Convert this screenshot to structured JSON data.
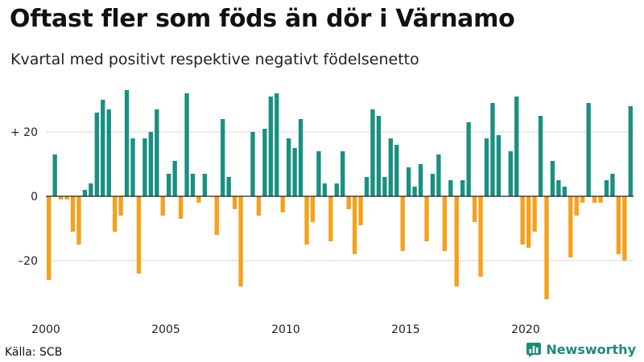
{
  "header": {
    "title": "Oftast fler som föds än dör i Värnamo",
    "subtitle": "Kvartal med positivt respektive negativt födelsenetto"
  },
  "footer": {
    "source": "Källa: SCB",
    "brand": "Newsworthy",
    "brand_icon": "newsworthy-logo-icon"
  },
  "colors": {
    "positive": "#1a9080",
    "negative": "#f5a11a",
    "grid": "#d9d9d9",
    "zero_line": "#222222"
  },
  "chart_data": {
    "type": "bar",
    "start_year": 2000,
    "periods_per_year": 4,
    "values": [
      -26,
      13,
      -1,
      -1,
      -11,
      -15,
      2,
      4,
      26,
      30,
      27,
      -11,
      -6,
      33,
      18,
      -24,
      18,
      20,
      27,
      -6,
      7,
      11,
      -7,
      32,
      7,
      -2,
      7,
      0,
      -12,
      24,
      6,
      -4,
      -28,
      0,
      20,
      -6,
      21,
      31,
      32,
      -5,
      18,
      15,
      24,
      -15,
      -8,
      14,
      4,
      -14,
      4,
      14,
      -4,
      -18,
      -9,
      6,
      27,
      25,
      6,
      18,
      16,
      -17,
      9,
      3,
      10,
      -14,
      7,
      13,
      -17,
      5,
      -28,
      5,
      23,
      -8,
      -25,
      18,
      29,
      19,
      0,
      14,
      31,
      -15,
      -16,
      -11,
      25,
      -32,
      11,
      5,
      3,
      -19,
      -6,
      -2,
      29,
      -2,
      -2,
      5,
      7,
      -18,
      -20,
      28
    ],
    "ylim": [
      -34,
      36
    ],
    "yticks": [
      {
        "value": 20,
        "label": "+ 20"
      },
      {
        "value": 0,
        "label": "0"
      },
      {
        "value": -20,
        "label": "–20"
      }
    ],
    "xticks": [
      {
        "value": 2000,
        "label": "2000"
      },
      {
        "value": 2005,
        "label": "2005"
      },
      {
        "value": 2010,
        "label": "2010"
      },
      {
        "value": 2015,
        "label": "2015"
      },
      {
        "value": 2020,
        "label": "2020"
      }
    ],
    "grid": true
  }
}
